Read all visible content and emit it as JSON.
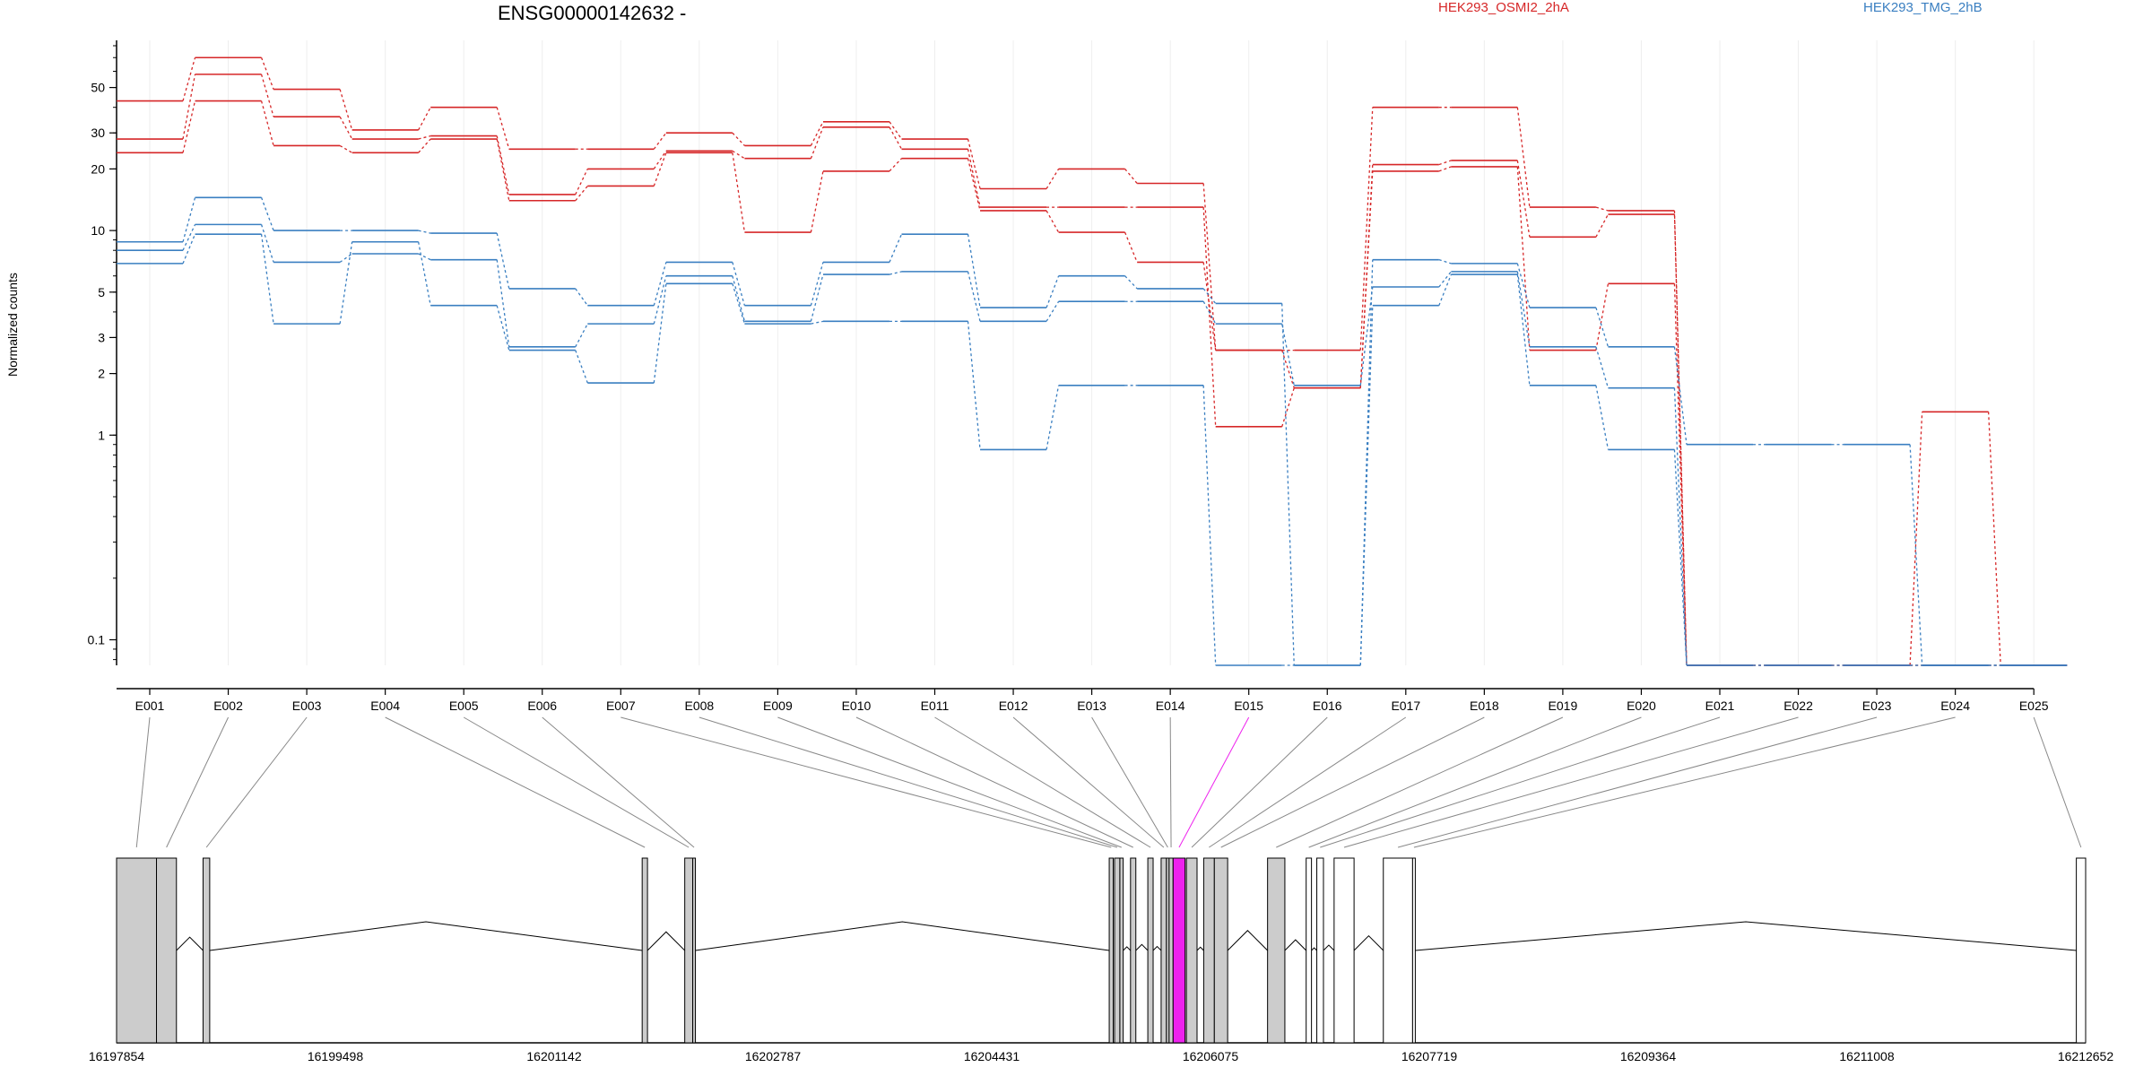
{
  "chart_data": {
    "type": "line",
    "title": "ENSG00000142632 -",
    "ylabel": "Normalized counts",
    "yscale": "log",
    "ylim": [
      0.075,
      85
    ],
    "y_ticks": [
      0.1,
      1,
      2,
      3,
      5,
      10,
      20,
      30,
      50
    ],
    "y_tick_labels": [
      "0.1",
      "1",
      "2",
      "3",
      "5",
      "10",
      "20",
      "30",
      "50"
    ],
    "categories": [
      "E001",
      "E002",
      "E003",
      "E004",
      "E005",
      "E006",
      "E007",
      "E008",
      "E009",
      "E010",
      "E011",
      "E012",
      "E013",
      "E014",
      "E015",
      "E016",
      "E017",
      "E018",
      "E019",
      "E020",
      "E021",
      "E022",
      "E023",
      "E024",
      "E025"
    ],
    "legend": [
      {
        "label": "HEK293_OSMI2_2hA",
        "color": "#d62728"
      },
      {
        "label": "HEK293_TMG_2hB",
        "color": "#3a7fc1"
      }
    ],
    "series": [
      {
        "group": "HEK293_OSMI2_2hA",
        "color": "#d62728",
        "values": [
          43,
          70,
          49,
          31,
          40,
          25,
          25,
          30,
          26,
          34,
          28,
          16,
          20,
          17,
          2.6,
          2.6,
          40,
          40,
          13,
          12.5,
          0.075,
          0.075,
          0.075,
          1.3,
          0.075
        ]
      },
      {
        "group": "HEK293_OSMI2_2hA",
        "color": "#d62728",
        "values": [
          28,
          58,
          36,
          28,
          29,
          15,
          20,
          24.5,
          22.5,
          32,
          25,
          13,
          13,
          13,
          1.1,
          1.7,
          21,
          22,
          9.3,
          12,
          0.075,
          0.075,
          0.075,
          0.075,
          0.075
        ]
      },
      {
        "group": "HEK293_OSMI2_2hA",
        "color": "#d62728",
        "values": [
          24,
          43,
          26,
          24,
          28,
          14,
          16.5,
          24,
          9.8,
          19.5,
          22.5,
          12.5,
          9.8,
          7,
          2.6,
          1.7,
          19.5,
          20.5,
          2.6,
          5.5,
          0.075,
          0.075,
          0.075,
          0.075,
          0.075
        ]
      },
      {
        "group": "HEK293_TMG_2hB",
        "color": "#3a7fc1",
        "values": [
          8.8,
          14.5,
          10,
          10,
          9.7,
          5.2,
          4.3,
          7,
          4.3,
          7,
          9.6,
          4.2,
          6,
          5.2,
          4.4,
          0.075,
          7.2,
          6.9,
          4.2,
          2.7,
          0.9,
          0.9,
          0.9,
          0.075,
          0.075
        ]
      },
      {
        "group": "HEK293_TMG_2hB",
        "color": "#3a7fc1",
        "values": [
          8,
          10.7,
          7,
          7.7,
          7.2,
          2.7,
          3.5,
          6,
          3.6,
          6.1,
          6.3,
          3.6,
          4.5,
          4.5,
          3.5,
          1.75,
          5.3,
          6.3,
          2.7,
          1.7,
          0.075,
          0.075,
          0.075,
          0.075,
          0.075
        ]
      },
      {
        "group": "HEK293_TMG_2hB",
        "color": "#3a7fc1",
        "values": [
          6.9,
          9.6,
          3.5,
          8.8,
          4.3,
          2.6,
          1.8,
          5.5,
          3.5,
          3.6,
          3.6,
          0.85,
          1.75,
          1.75,
          0.075,
          0.075,
          4.3,
          6.1,
          1.75,
          0.85,
          0.075,
          0.075,
          0.075,
          0.075,
          0.075
        ]
      }
    ],
    "highlight_exon": "E015",
    "highlight_color": "#ee22ee",
    "gene_model": {
      "coordinate_ticks": [
        "16197854",
        "16199498",
        "16201142",
        "16202787",
        "16204431",
        "16206075",
        "16207719",
        "16209364",
        "16211008",
        "16212652"
      ],
      "exons": [
        {
          "id": "E001",
          "start": 16197854,
          "end": 16198154,
          "fill": "#cccccc"
        },
        {
          "id": "E002",
          "start": 16198154,
          "end": 16198304,
          "fill": "#cccccc"
        },
        {
          "id": "E003",
          "start": 16198504,
          "end": 16198554,
          "fill": "#cccccc"
        },
        {
          "id": "E004",
          "start": 16201804,
          "end": 16201844,
          "fill": "#cccccc"
        },
        {
          "id": "E005",
          "start": 16202124,
          "end": 16202184,
          "fill": "#cccccc"
        },
        {
          "id": "E006",
          "start": 16202184,
          "end": 16202204,
          "fill": "#cccccc"
        },
        {
          "id": "E007",
          "start": 16205314,
          "end": 16205344,
          "fill": "#cccccc"
        },
        {
          "id": "E008",
          "start": 16205354,
          "end": 16205394,
          "fill": "#cccccc"
        },
        {
          "id": "E009",
          "start": 16205394,
          "end": 16205419,
          "fill": "#cccccc"
        },
        {
          "id": "E010",
          "start": 16205474,
          "end": 16205514,
          "fill": "#cccccc"
        },
        {
          "id": "E011",
          "start": 16205604,
          "end": 16205644,
          "fill": "#cccccc"
        },
        {
          "id": "E012",
          "start": 16205704,
          "end": 16205744,
          "fill": "#cccccc"
        },
        {
          "id": "E013",
          "start": 16205744,
          "end": 16205764,
          "fill": "#cccccc"
        },
        {
          "id": "E014",
          "start": 16205764,
          "end": 16205794,
          "fill": "#cccccc"
        },
        {
          "id": "E015",
          "start": 16205794,
          "end": 16205884,
          "fill": "#ee22ee"
        },
        {
          "id": "E016",
          "start": 16205894,
          "end": 16205974,
          "fill": "#cccccc"
        },
        {
          "id": "E017",
          "start": 16206024,
          "end": 16206104,
          "fill": "#cccccc"
        },
        {
          "id": "E018",
          "start": 16206104,
          "end": 16206204,
          "fill": "#cccccc"
        },
        {
          "id": "E019",
          "start": 16206504,
          "end": 16206634,
          "fill": "#cccccc"
        },
        {
          "id": "E020",
          "start": 16206794,
          "end": 16206834,
          "fill": "#ffffff"
        },
        {
          "id": "E021",
          "start": 16206874,
          "end": 16206924,
          "fill": "#ffffff"
        },
        {
          "id": "E022",
          "start": 16207004,
          "end": 16207154,
          "fill": "#ffffff"
        },
        {
          "id": "E023",
          "start": 16207374,
          "end": 16207594,
          "fill": "#ffffff"
        },
        {
          "id": "E024",
          "start": 16207594,
          "end": 16207600,
          "fill": "#ffffff"
        },
        {
          "id": "E025",
          "start": 16212582,
          "end": 16212652,
          "fill": "#ffffff"
        }
      ]
    }
  }
}
